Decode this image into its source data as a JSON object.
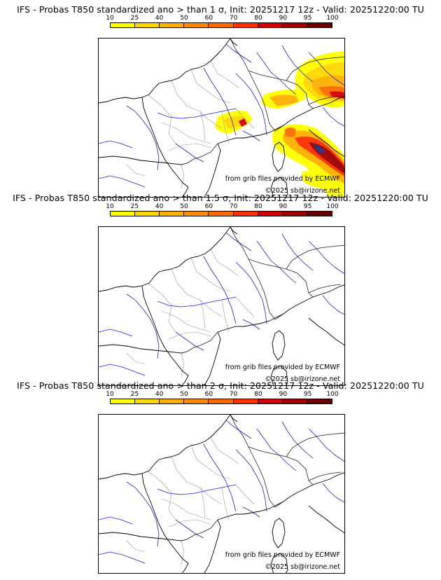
{
  "colorbar": {
    "ticks": [
      "10",
      "25",
      "40",
      "50",
      "60",
      "70",
      "80",
      "90",
      "95",
      "100"
    ],
    "colors": [
      "#ffff00",
      "#ffd700",
      "#ffb000",
      "#ff8c00",
      "#ff6a00",
      "#ff3000",
      "#d40000",
      "#a00000",
      "#6a0000"
    ]
  },
  "panels": [
    {
      "title": "IFS - Probas T850  standardized ano > than 1 σ, Init: 20251217 12z - Valid: 20251220:00 TU",
      "source": "from grib files provided by ECMWF",
      "copyright": "©2025 sb@irizone.net",
      "has_anomaly": true
    },
    {
      "title": "IFS - Probas T850  standardized ano > than 1.5 σ, Init: 20251217 12z - Valid: 20251220:00 TU",
      "source": "from grib files provided by ECMWF",
      "copyright": "©2025 sb@irizone.net",
      "has_anomaly": false
    },
    {
      "title": "IFS - Probas T850  standardized ano > than 2 σ, Init: 20251217 12z - Valid: 20251220:00 TU",
      "source": "from grib files provided by ECMWF",
      "copyright": "©2025 sb@irizone.net",
      "has_anomaly": false
    }
  ]
}
